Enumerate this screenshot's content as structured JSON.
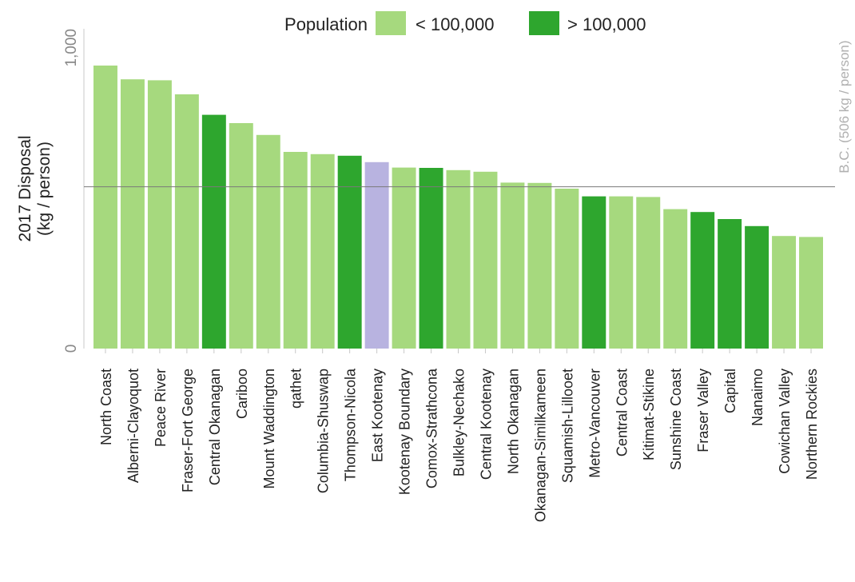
{
  "chart_data": {
    "type": "bar",
    "ylabel_line1": "2017 Disposal",
    "ylabel_line2": "(kg / person)",
    "ylim": [
      0,
      1000
    ],
    "yticks": [
      "0",
      "1,000"
    ],
    "grid": false,
    "legend": {
      "title": "Population",
      "placement": "top-center",
      "entries": [
        {
          "label": "< 100,000",
          "color": "#a6d97e"
        },
        {
          "label": "> 100,000",
          "color": "#2ea62e"
        }
      ]
    },
    "reference_line": {
      "value": 506,
      "label": "B.C. (506 kg / person)",
      "color": "#b0b0b0"
    },
    "colors": {
      "small": "#a6d97e",
      "large": "#2ea62e",
      "bc": "#b8b3e0"
    },
    "categories": [
      "North Coast",
      "Alberni-Clayoquot",
      "Peace River",
      "Fraser-Fort George",
      "Central Okanagan",
      "Cariboo",
      "Mount Waddington",
      "qathet",
      "Columbia-Shuswap",
      "Thompson-Nicola",
      "East Kootenay",
      "Kootenay Boundary",
      "Comox-Strathcona",
      "Bulkley-Nechako",
      "Central Kootenay",
      "North Okanagan",
      "Okanagan-Similkameen",
      "Squamish-Lillooet",
      "Metro-Vancouver",
      "Central Coast",
      "Kitimat-Stikine",
      "Sunshine Coast",
      "Fraser Valley",
      "Capital",
      "Nanaimo",
      "Cowichan Valley",
      "Northern Rockies"
    ],
    "values": [
      885,
      842,
      839,
      795,
      731,
      705,
      668,
      615,
      608,
      603,
      583,
      566,
      565,
      558,
      553,
      519,
      518,
      500,
      476,
      476,
      474,
      436,
      427,
      405,
      383,
      352,
      349
    ],
    "population_group": [
      "small",
      "small",
      "small",
      "small",
      "large",
      "small",
      "small",
      "small",
      "small",
      "large",
      "bc",
      "small",
      "large",
      "small",
      "small",
      "small",
      "small",
      "small",
      "large",
      "small",
      "small",
      "small",
      "large",
      "large",
      "large",
      "small",
      "small"
    ]
  }
}
